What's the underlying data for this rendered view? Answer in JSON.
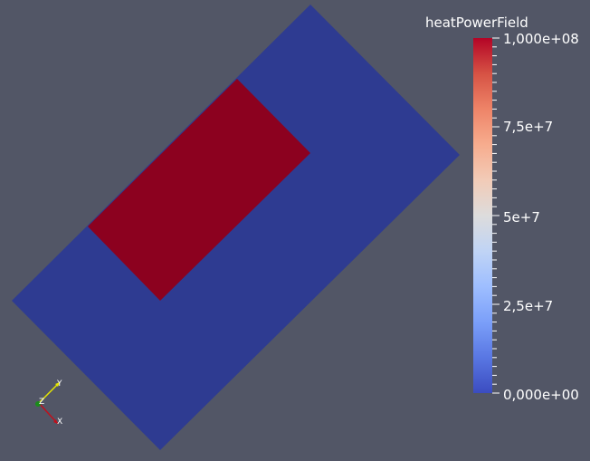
{
  "colorbar": {
    "title": "heatPowerField",
    "labels": [
      "1,000e+08",
      "7,5e+7",
      "5e+7",
      "2,5e+7",
      "0,000e+00"
    ],
    "colormap": [
      "#3b4cc0",
      "#5977e3",
      "#7b9ff9",
      "#9ebeff",
      "#c0d4f5",
      "#dddcdc",
      "#f2cbb7",
      "#f7ac8e",
      "#ee8468",
      "#d65244",
      "#b40426"
    ]
  },
  "axes": {
    "x": "X",
    "y": "Y",
    "z": "Z"
  },
  "colors": {
    "background": "#525666",
    "low_region": "#2e3b91",
    "high_region": "#8c011f"
  }
}
